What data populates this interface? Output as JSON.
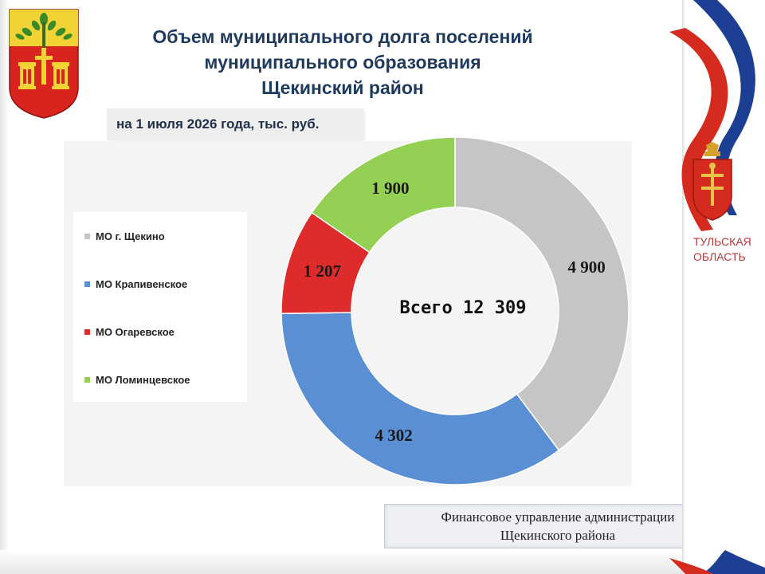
{
  "header": {
    "title_line1": "Объем муниципального долга поселений",
    "title_line2": "муниципального образования",
    "title_line3": "Щекинский район",
    "subtitle": "на 1 июля 2026 года, тыс. руб."
  },
  "chart_data": {
    "type": "pie",
    "donut": true,
    "categories": [
      "МО г. Щекино",
      "МО Крапивенское",
      "МО Огаревское",
      "МО Ломинцевское"
    ],
    "values": [
      4900,
      4302,
      1207,
      1900
    ],
    "value_labels": [
      "4 900",
      "4 302",
      "1 207",
      "1 900"
    ],
    "colors": [
      "#c5c5c5",
      "#5b8fd4",
      "#de2b2b",
      "#94d053"
    ],
    "center_label": "Всего 12 309",
    "legend_position": "left"
  },
  "footer": {
    "line1": "Финансовое управление администрации",
    "line2": "Щекинского района"
  },
  "region": {
    "line1": "ТУЛЬСКАЯ",
    "line2": "ОБЛАСТЬ"
  },
  "colors": {
    "title": "#1f3a5f",
    "flag_red": "#d52b1e",
    "flag_blue": "#1c3f94",
    "region_red": "#b33a3a"
  },
  "icons": {
    "left": "shchekino-coat-of-arms-icon",
    "right": "tula-oblast-coat-of-arms-icon"
  }
}
